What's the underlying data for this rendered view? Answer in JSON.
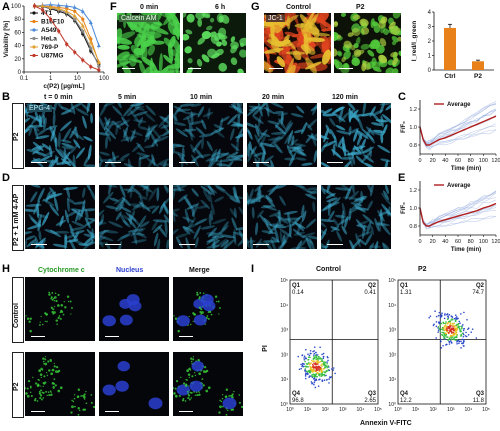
{
  "panels": {
    "A": "A",
    "B": "B",
    "C": "C",
    "D": "D",
    "E": "E",
    "F": "F",
    "G": "G",
    "H": "H",
    "I": "I"
  },
  "chart_data": [
    {
      "panel": "A",
      "type": "line",
      "xlabel": "c(P2) [µg/mL]",
      "ylabel": "Viability [%]",
      "xscale": "log",
      "xlim": [
        0.1,
        100
      ],
      "ylim": [
        0,
        100
      ],
      "xticks": [
        "0.1",
        "1",
        "10",
        "100"
      ],
      "yticks": [
        "0",
        "20",
        "40",
        "60",
        "80",
        "100"
      ],
      "x": [
        0.25,
        0.5,
        1,
        2,
        4,
        8,
        16,
        32,
        64
      ],
      "series": [
        {
          "name": "4T1",
          "color": "#111111",
          "values": [
            100,
            99,
            96,
            92,
            88,
            78,
            58,
            32,
            12
          ]
        },
        {
          "name": "B16F10",
          "color": "#e8811a",
          "values": [
            100,
            100,
            99,
            98,
            96,
            92,
            80,
            50,
            14
          ]
        },
        {
          "name": "A549",
          "color": "#4a88d8",
          "values": [
            100,
            101,
            102,
            101,
            100,
            98,
            92,
            75,
            40
          ]
        },
        {
          "name": "HeLa",
          "color": "#8a8a8a",
          "values": [
            100,
            99,
            97,
            94,
            90,
            80,
            62,
            36,
            8
          ]
        },
        {
          "name": "769-P",
          "color": "#e0a030",
          "values": [
            100,
            100,
            98,
            96,
            92,
            85,
            70,
            45,
            15
          ]
        },
        {
          "name": "U87MG",
          "color": "#c0392b",
          "values": [
            100,
            94,
            80,
            62,
            42,
            30,
            18,
            8,
            3
          ]
        }
      ]
    },
    {
      "panel": "C",
      "type": "line",
      "xlabel": "Time (min)",
      "ylabel": "F/F₀",
      "xlim": [
        0,
        120
      ],
      "ylim": [
        0.7,
        1.3
      ],
      "xticks": [
        "0",
        "20",
        "40",
        "60",
        "80",
        "100",
        "120"
      ],
      "yticks": [
        "0.8",
        "1.0",
        "1.2"
      ],
      "legend": "Average",
      "x": [
        0,
        5,
        10,
        15,
        20,
        30,
        40,
        50,
        60,
        70,
        80,
        90,
        100,
        110,
        120
      ],
      "series": [
        {
          "name": "Average",
          "values": [
            1.0,
            0.86,
            0.8,
            0.8,
            0.82,
            0.86,
            0.88,
            0.91,
            0.94,
            0.97,
            1.0,
            1.03,
            1.06,
            1.09,
            1.12
          ]
        }
      ]
    },
    {
      "panel": "E",
      "type": "line",
      "xlabel": "Time (min)",
      "ylabel": "F/F₀",
      "xlim": [
        0,
        120
      ],
      "ylim": [
        0.7,
        1.3
      ],
      "xticks": [
        "0",
        "20",
        "40",
        "60",
        "80",
        "100",
        "120"
      ],
      "yticks": [
        "0.8",
        "1.0",
        "1.2"
      ],
      "legend": "Average",
      "x": [
        0,
        5,
        10,
        15,
        20,
        30,
        40,
        50,
        60,
        70,
        80,
        90,
        100,
        110,
        120
      ],
      "series": [
        {
          "name": "Average",
          "values": [
            1.0,
            0.84,
            0.8,
            0.8,
            0.82,
            0.85,
            0.87,
            0.89,
            0.91,
            0.93,
            0.95,
            0.97,
            1.0,
            1.02,
            1.05
          ]
        }
      ]
    },
    {
      "panel": "G-bar",
      "type": "bar",
      "ylabel": "I_red/I_green",
      "categories": [
        "Ctrl",
        "P2"
      ],
      "values": [
        2.9,
        0.6
      ],
      "errors": [
        0.25,
        0.08
      ],
      "ylim": [
        0,
        4
      ],
      "yticks": [
        "0",
        "1",
        "2",
        "3",
        "4"
      ],
      "color": "#e8811a"
    }
  ],
  "micro": {
    "B_label": "EPG-4",
    "BD_times": [
      "t = 0 min",
      "5 min",
      "10 min",
      "20 min",
      "120 min"
    ],
    "B_row": "P2",
    "D_row": "P2 + 1 mM 4-AP",
    "F_titles": [
      "0 min",
      "6 h"
    ],
    "F_tag": "Calcein AM",
    "G_titles": [
      "Control",
      "P2"
    ],
    "G_tag": "JC-1",
    "H_cols": [
      "Cytochrome c",
      "Nucleus",
      "Merge"
    ],
    "H_rows": [
      "Control",
      "P2"
    ]
  },
  "flow": {
    "titles": [
      "Control",
      "P2"
    ],
    "ylabel": "PI",
    "xlabel": "Annexin V-FITC",
    "ticks": [
      "10⁰",
      "10¹",
      "10²",
      "10³",
      "10⁴",
      "10⁵"
    ],
    "plots": [
      {
        "q1": "Q1",
        "q1v": "0.14",
        "q2": "Q2",
        "q2v": "0.41",
        "q3": "Q3",
        "q3v": "2.65",
        "q4": "Q4",
        "q4v": "96.8"
      },
      {
        "q1": "Q1",
        "q1v": "1.31",
        "q2": "Q2",
        "q2v": "74.7",
        "q3": "Q3",
        "q3v": "11.8",
        "q4": "Q4",
        "q4v": "12.2"
      }
    ]
  },
  "colors": {
    "fluor_green": "#37c23a",
    "fluor_blue": "#2a3fd0",
    "fluor_red": "#d63a1f",
    "trace_red": "#b01e1e",
    "bar_orange": "#e8811a"
  }
}
